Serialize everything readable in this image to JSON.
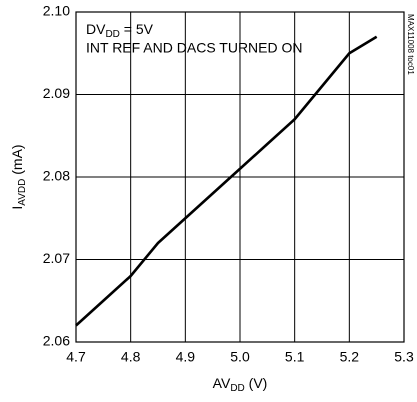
{
  "chart_data": {
    "type": "line",
    "annotations": [
      [
        "DV",
        "DD",
        " = 5V"
      ],
      "INT REF AND DACS TURNED ON"
    ],
    "side_note": "MAX11008 toc01",
    "xlabel": [
      "AV",
      "DD",
      " (V)"
    ],
    "ylabel": [
      "I",
      "AVDD",
      " (mA)"
    ],
    "x": [
      4.7,
      4.75,
      4.8,
      4.85,
      4.9,
      4.95,
      5.0,
      5.05,
      5.1,
      5.15,
      5.2,
      5.25
    ],
    "series": [
      {
        "color": "#000000",
        "values": [
          2.062,
          2.065,
          2.068,
          2.072,
          2.075,
          2.078,
          2.081,
          2.084,
          2.087,
          2.091,
          2.095,
          2.097
        ]
      }
    ],
    "xlim": [
      4.7,
      5.3
    ],
    "xticks": [
      4.7,
      4.8,
      4.9,
      {
        "value": 5,
        "label": "5.0"
      },
      5.1,
      5.2,
      5.3
    ],
    "ylim": [
      2.06,
      2.1
    ],
    "yticks": [
      2.06,
      2.07,
      2.08,
      2.09,
      {
        "value": 2.1,
        "label": "2.10"
      }
    ],
    "grid": true
  }
}
